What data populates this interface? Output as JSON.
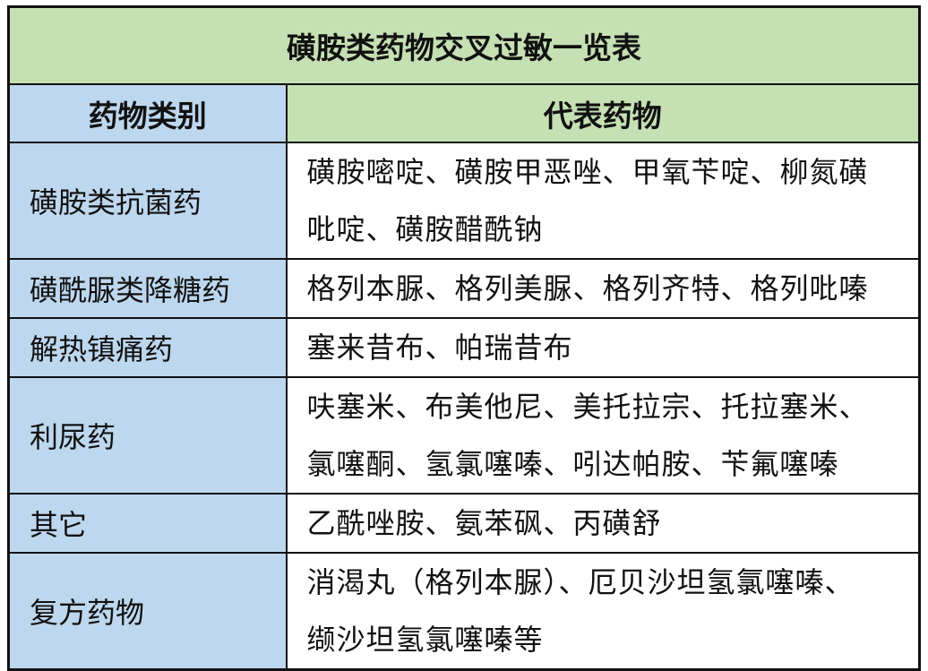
{
  "table": {
    "title": "磺胺类药物交叉过敏一览表",
    "headers": {
      "category": "药物类别",
      "drugs": "代表药物"
    },
    "rows": [
      {
        "category": "磺胺类抗菌药",
        "drug_lines": [
          "磺胺嘧啶、磺胺甲恶唑、甲氧苄啶、柳氮磺",
          "吡啶、磺胺醋酰钠"
        ]
      },
      {
        "category": "磺酰脲类降糖药",
        "drug_lines": [
          "格列本脲、格列美脲、格列齐特、格列吡嗪"
        ]
      },
      {
        "category": "解热镇痛药",
        "drug_lines": [
          "塞来昔布、帕瑞昔布"
        ]
      },
      {
        "category": "利尿药",
        "drug_lines": [
          "呋塞米、布美他尼、美托拉宗、托拉塞米、",
          "氯噻酮、氢氯噻嗪、吲达帕胺、苄氟噻嗪"
        ]
      },
      {
        "category": "其它",
        "drug_lines": [
          "乙酰唑胺、氨苯砜、丙磺舒"
        ]
      },
      {
        "category": "复方药物",
        "drug_lines": [
          "消渴丸（格列本脲）、厄贝沙坦氢氯噻嗪、",
          "缬沙坦氢氯噻嗪等"
        ]
      }
    ],
    "colors": {
      "title_bg": "#c5e0b3",
      "category_bg": "#bdd7ee",
      "border": "#111111"
    }
  }
}
